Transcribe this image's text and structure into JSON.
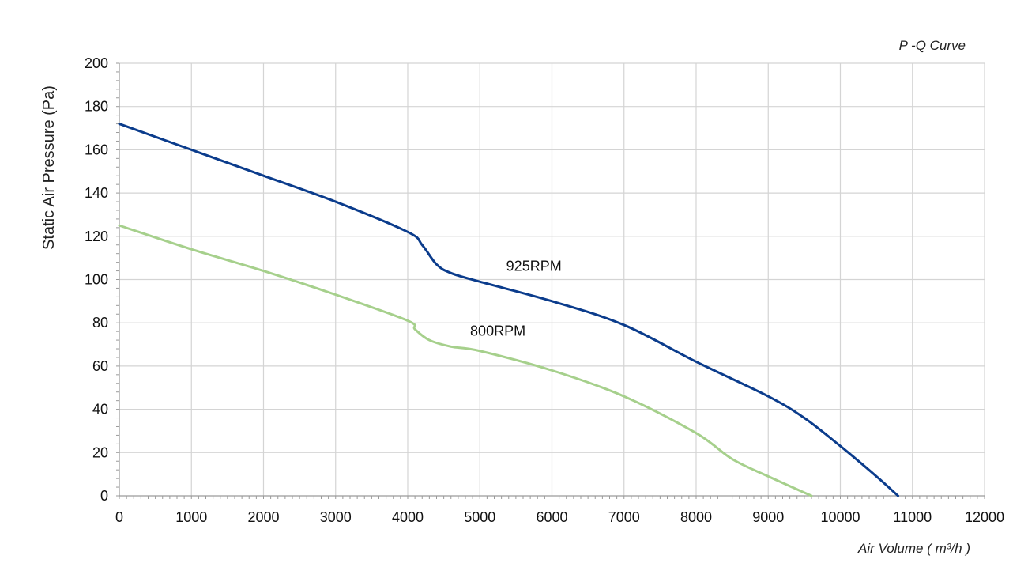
{
  "chart_data": {
    "type": "line",
    "title": "P -Q Curve",
    "xlabel": "Air Volume ( m³/h )",
    "ylabel": "Static Air Pressure  (Pa)",
    "xlim": [
      0,
      12000
    ],
    "ylim": [
      0,
      200
    ],
    "x_ticks": [
      0,
      1000,
      2000,
      3000,
      4000,
      5000,
      6000,
      7000,
      8000,
      9000,
      10000,
      11000,
      12000
    ],
    "y_ticks": [
      0,
      20,
      40,
      60,
      80,
      100,
      120,
      140,
      160,
      180,
      200
    ],
    "grid": true,
    "legend": "none",
    "series": [
      {
        "name": "925RPM",
        "color": "#0b3c8c",
        "x": [
          0,
          1000,
          2000,
          3000,
          4000,
          4200,
          4400,
          4600,
          5000,
          6000,
          7000,
          8000,
          9000,
          9500,
          10000,
          10500,
          10800
        ],
        "y": [
          172,
          160,
          148,
          136,
          122,
          116,
          107,
          103,
          99,
          90,
          79,
          62,
          46,
          36,
          23,
          9,
          0
        ]
      },
      {
        "name": "800RPM",
        "color": "#a6d08c",
        "x": [
          0,
          1000,
          2000,
          3000,
          4000,
          4100,
          4300,
          4600,
          5000,
          6000,
          7000,
          8000,
          8500,
          9000,
          9600
        ],
        "y": [
          125,
          114,
          104,
          93,
          81,
          77,
          72,
          69,
          67,
          58,
          46,
          29,
          17,
          9,
          0
        ]
      }
    ],
    "annotations": [
      {
        "text": "925RPM",
        "x": 5750,
        "y": 104
      },
      {
        "text": "800RPM",
        "x": 5250,
        "y": 74
      }
    ]
  }
}
